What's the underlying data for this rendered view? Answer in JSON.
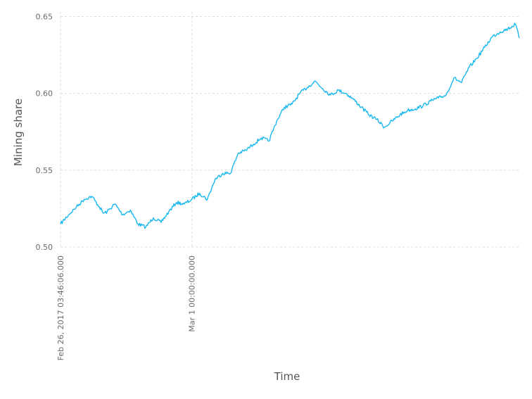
{
  "chart_data": {
    "type": "line",
    "title": "",
    "xlabel": "Time",
    "ylabel": "Mining share",
    "x_tick_labels": [
      "Feb 26, 2017 03:46:06.000",
      "Mar 1 00:00:00.000"
    ],
    "y_tick_labels": [
      "0.50",
      "0.55",
      "0.60",
      "0.65"
    ],
    "y_ticks": [
      0.5,
      0.55,
      0.6,
      0.65
    ],
    "ylim": [
      0.5,
      0.653
    ],
    "xlim": [
      "2017-02-26T03:46:06",
      "2017-03-08T02:00:00"
    ],
    "x_ticks": [
      "2017-02-26T03:46:06",
      "2017-03-01T00:00:00"
    ],
    "grid": true,
    "color": "#1ab8f0",
    "series": [
      {
        "x": [
          "2017-02-26T03:46",
          "2017-02-26T08:00",
          "2017-02-26T12:00",
          "2017-02-26T16:00",
          "2017-02-26T20:00",
          "2017-02-27T00:00",
          "2017-02-27T02:00",
          "2017-02-27T04:00",
          "2017-02-27T08:00",
          "2017-02-27T12:00",
          "2017-02-27T16:00",
          "2017-02-27T20:00",
          "2017-02-28T00:00",
          "2017-02-28T04:00",
          "2017-02-28T08:00",
          "2017-02-28T12:00",
          "2017-02-28T16:00",
          "2017-02-28T20:00",
          "2017-03-01T00:00",
          "2017-03-01T04:00",
          "2017-03-01T08:00",
          "2017-03-01T12:00",
          "2017-03-01T16:00",
          "2017-03-01T20:00",
          "2017-03-02T00:00",
          "2017-03-02T04:00",
          "2017-03-02T08:00",
          "2017-03-02T12:00",
          "2017-03-02T16:00",
          "2017-03-02T20:00",
          "2017-03-03T00:00",
          "2017-03-03T04:00",
          "2017-03-03T08:00",
          "2017-03-03T12:00",
          "2017-03-03T16:00",
          "2017-03-03T20:00",
          "2017-03-04T00:00",
          "2017-03-04T04:00",
          "2017-03-04T08:00",
          "2017-03-04T12:00",
          "2017-03-04T16:00",
          "2017-03-04T20:00",
          "2017-03-05T00:00",
          "2017-03-05T04:00",
          "2017-03-05T08:00",
          "2017-03-05T12:00",
          "2017-03-05T16:00",
          "2017-03-05T20:00",
          "2017-03-06T00:00",
          "2017-03-06T04:00",
          "2017-03-06T08:00",
          "2017-03-06T12:00",
          "2017-03-06T16:00",
          "2017-03-06T20:00",
          "2017-03-07T00:00",
          "2017-03-07T04:00",
          "2017-03-07T08:00",
          "2017-03-07T12:00",
          "2017-03-07T16:00",
          "2017-03-07T20:00",
          "2017-03-08T00:00",
          "2017-03-08T02:00"
        ],
        "values": [
          0.515,
          0.521,
          0.526,
          0.531,
          0.533,
          0.526,
          0.522,
          0.523,
          0.528,
          0.521,
          0.524,
          0.515,
          0.513,
          0.519,
          0.516,
          0.523,
          0.529,
          0.528,
          0.531,
          0.535,
          0.531,
          0.544,
          0.548,
          0.548,
          0.561,
          0.563,
          0.567,
          0.571,
          0.569,
          0.582,
          0.591,
          0.593,
          0.6,
          0.604,
          0.608,
          0.603,
          0.599,
          0.602,
          0.6,
          0.596,
          0.591,
          0.586,
          0.583,
          0.578,
          0.582,
          0.586,
          0.589,
          0.59,
          0.592,
          0.595,
          0.597,
          0.599,
          0.61,
          0.607,
          0.617,
          0.623,
          0.63,
          0.637,
          0.64,
          0.642,
          0.645,
          0.636
        ]
      }
    ]
  }
}
